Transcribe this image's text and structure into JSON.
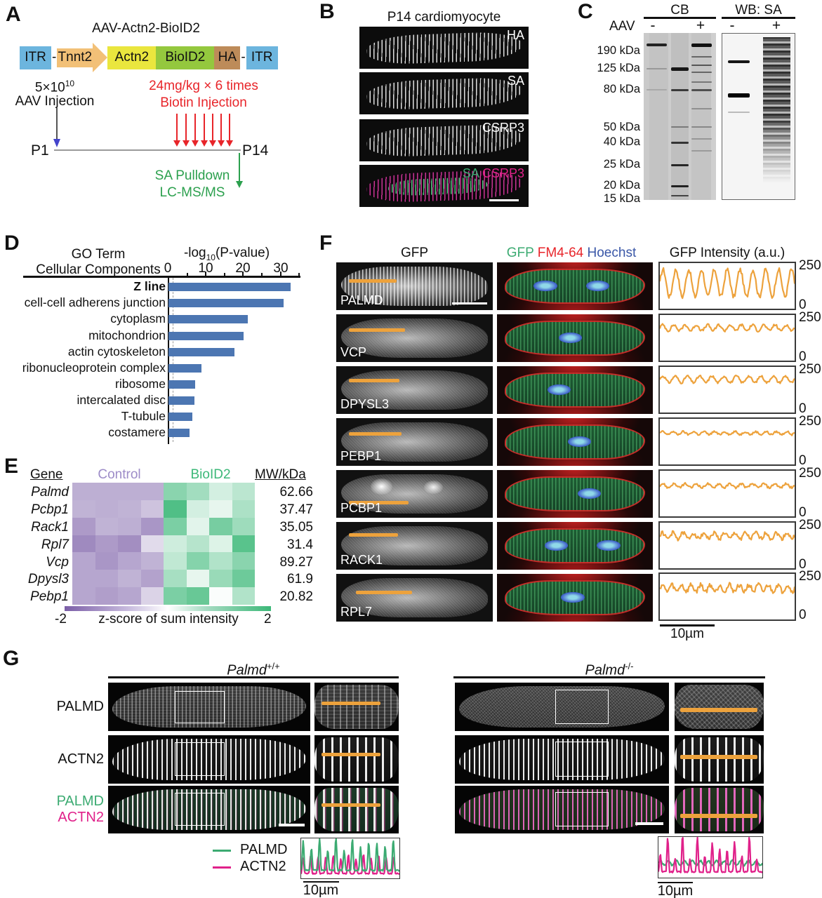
{
  "colors": {
    "red_text": "#e8252a",
    "green_text": "#2ca04e",
    "blue_arrow": "#4444cc",
    "gfp_green": "#3cab72",
    "hoechst_blue": "#3a57a7",
    "magenta": "#e0218a",
    "bar_blue": "#4c76b2",
    "trace_orange": "#eda23c",
    "control_purple": "#9d8cc8",
    "bioid2_green": "#3cb878",
    "itr_blue": "#6cb5de",
    "tnnt2_orange": "#f2c077",
    "actn2_yellow": "#eae63e",
    "bioid2_box_green": "#94c83e",
    "ha_brown": "#bd8b59",
    "heat_purple": "#7b5ea7",
    "heat_green": "#3cb878",
    "timeline_gray": "#9a9a9a"
  },
  "panelA": {
    "letter": "A",
    "title": "AAV-Actn2-BioID2",
    "construct": {
      "itr_left": "ITR",
      "dash1": "-",
      "promoter": "Tnnt2",
      "gene": "Actn2",
      "tag": "BioID2",
      "ha": "HA",
      "dash2": "-",
      "itr_right": "ITR"
    },
    "dose_base": "5×10",
    "dose_exp": "10",
    "aav_label": "AAV Injection",
    "biotin_dose": "24mg/kg × 6 times",
    "biotin_label": "Biotin Injection",
    "timeline_start": "P1",
    "timeline_end": "P14",
    "pulldown": "SA Pulldown",
    "ms": "LC-MS/MS"
  },
  "panelB": {
    "letter": "B",
    "title": "P14 cardiomyocyte",
    "images": [
      {
        "label": "HA"
      },
      {
        "label": "SA"
      },
      {
        "label": "CSRP3"
      },
      {
        "label_green": "SA",
        "label_magenta": "CSRP3"
      }
    ]
  },
  "panelC": {
    "letter": "C",
    "blot1_title": "CB",
    "blot2_title": "WB: SA",
    "row_label": "AAV",
    "lane_signs": [
      "-",
      "+",
      "-",
      "+"
    ],
    "mw_labels": [
      "190 kDa",
      "125 kDa",
      "80 kDa",
      "50 kDa",
      "40 kDa",
      "25 kDa",
      "20 kDa",
      "15 kDa"
    ]
  },
  "panelD": {
    "letter": "D",
    "header_line1": "GO Term",
    "header_line2": "Cellular Components",
    "axis_pre": "-log",
    "axis_sub": "10",
    "axis_post": "(P-value)",
    "ticks": [
      "0",
      "10",
      "20",
      "30"
    ]
  },
  "panelE": {
    "letter": "E",
    "headers": {
      "gene": "Gene",
      "control": "Control",
      "bioid2": "BioID2",
      "mw": "MW/kDa"
    },
    "rows": [
      {
        "gene": "Palmd",
        "mw": "62.66"
      },
      {
        "gene": "Pcbp1",
        "mw": "37.47"
      },
      {
        "gene": "Rack1",
        "mw": "35.05"
      },
      {
        "gene": "Rpl7",
        "mw": "31.4"
      },
      {
        "gene": "Vcp",
        "mw": "89.27"
      },
      {
        "gene": "Dpysl3",
        "mw": "61.9"
      },
      {
        "gene": "Pebp1",
        "mw": "20.82"
      }
    ],
    "heatmap": {
      "columns": [
        "Control",
        "Control",
        "Control",
        "Control",
        "BioID2",
        "BioID2",
        "BioID2",
        "BioID2"
      ],
      "z": [
        [
          -1.0,
          -1.0,
          -1.0,
          -1.0,
          1.2,
          0.95,
          0.45,
          0.7
        ],
        [
          -0.95,
          -1.0,
          -0.95,
          -0.75,
          1.8,
          0.45,
          0.25,
          0.85
        ],
        [
          -1.25,
          -0.95,
          -1.0,
          -1.3,
          1.35,
          0.3,
          1.4,
          1.0
        ],
        [
          -1.45,
          -1.25,
          -1.4,
          -0.45,
          0.5,
          0.75,
          0.35,
          1.7
        ],
        [
          -1.1,
          -1.3,
          -1.1,
          -0.95,
          0.65,
          1.25,
          0.8,
          1.2
        ],
        [
          -1.1,
          -1.1,
          -0.95,
          -1.15,
          0.9,
          0.25,
          1.05,
          1.5
        ],
        [
          -1.1,
          -1.2,
          -1.1,
          -0.55,
          1.35,
          1.55,
          0.05,
          0.8
        ]
      ]
    },
    "colorbar": {
      "min": "-2",
      "max": "2",
      "label": "z-score of sum intensity"
    }
  },
  "panelF": {
    "letter": "F",
    "col1_header": "GFP",
    "col2_header": {
      "gfp": "GFP",
      "fm": "FM4-64",
      "hoechst": "Hoechst"
    },
    "col3_header": "GFP Intensity (a.u.)",
    "ymax": "250",
    "ymin": "0",
    "scale_label": "10µm"
  },
  "panelG": {
    "letter": "G",
    "wt_title": {
      "base": "Palmd",
      "sup": "+/+"
    },
    "ko_title": {
      "base": "Palmd",
      "sup": "-/-"
    },
    "row_labels": [
      "PALMD",
      "ACTN2"
    ],
    "merge_labels": {
      "green": "PALMD",
      "magenta": "ACTN2"
    },
    "legend": [
      {
        "label": "PALMD"
      },
      {
        "label": "ACTN2"
      }
    ],
    "scale_label_wt": "10µm",
    "scale_label_ko": "10µm"
  },
  "chart_data": [
    {
      "id": "go-terms",
      "type": "bar",
      "orientation": "horizontal",
      "title": "GO Term Cellular Components",
      "xlabel": "-log10(P-value)",
      "xlim": [
        0,
        35
      ],
      "xticks": [
        0,
        10,
        20,
        30
      ],
      "grid": false,
      "categories": [
        "Z line",
        "cell-cell adherens junction",
        "cytoplasm",
        "mitochondrion",
        "actin cytoskeleton",
        "ribonucleoprotein complex",
        "ribosome",
        "intercalated disc",
        "T-tubule",
        "costamere"
      ],
      "values": [
        32.5,
        30.6,
        21.1,
        20.0,
        17.6,
        8.8,
        7.1,
        6.9,
        6.4,
        5.6
      ],
      "bar_color": "#4c76b2",
      "threshold_dashed_x": 1.3
    },
    {
      "id": "gfp-intensity-traces",
      "type": "line",
      "ylabel": "GFP Intensity (a.u.)",
      "ylim": [
        0,
        250
      ],
      "x_scale_label": "10µm",
      "series": [
        {
          "name": "PALMD",
          "baseline": 140,
          "amplitude": 75,
          "peaks": 10.5,
          "sharpness": 1,
          "noise": 25,
          "seed": 2
        },
        {
          "name": "VCP",
          "baseline": 180,
          "amplitude": 16,
          "peaks": 12,
          "sharpness": 1,
          "noise": 14,
          "seed": 3
        },
        {
          "name": "DPYSL3",
          "baseline": 182,
          "amplitude": 18,
          "peaks": 11,
          "sharpness": 1,
          "noise": 12,
          "seed": 4
        },
        {
          "name": "PEBP1",
          "baseline": 172,
          "amplitude": 8,
          "peaks": 13,
          "sharpness": 1,
          "noise": 10,
          "seed": 5
        },
        {
          "name": "PCBP1",
          "baseline": 168,
          "amplitude": 11,
          "peaks": 12,
          "sharpness": 1,
          "noise": 12,
          "seed": 6
        },
        {
          "name": "RACK1",
          "baseline": 178,
          "amplitude": 16,
          "peaks": 13,
          "sharpness": 1,
          "noise": 22,
          "seed": 7
        },
        {
          "name": "RPL7",
          "baseline": 172,
          "amplitude": 18,
          "peaks": 14,
          "sharpness": 1,
          "noise": 26,
          "seed": 8
        }
      ]
    },
    {
      "id": "palmd-wt-linescan",
      "type": "line",
      "ylim": [
        0,
        250
      ],
      "x_scale_label": "10µm",
      "series": [
        {
          "name": "ACTN2",
          "color_key": "magenta",
          "baseline": 30,
          "amplitude": 105,
          "peaks": 13,
          "sharpness": 2,
          "amp_jitter": 0.15,
          "noise": 6,
          "seed": 10
        },
        {
          "name": "PALMD",
          "color_key": "gfp_green",
          "baseline": 50,
          "amplitude": 165,
          "peaks": 12,
          "sharpness": 2.5,
          "amp_jitter": 0.25,
          "noise": 8,
          "seed": 9
        }
      ]
    },
    {
      "id": "palmd-ko-linescan",
      "type": "line",
      "ylim": [
        0,
        250
      ],
      "x_scale_label": "10µm",
      "series": [
        {
          "name": "PALMD",
          "color_key": "gfp_green",
          "baseline": 90,
          "amplitude": 14,
          "peaks": 13,
          "sharpness": 1,
          "amp_jitter": 0,
          "noise": 10,
          "seed": 13
        },
        {
          "name": "ACTN2",
          "color_key": "magenta",
          "baseline": 35,
          "amplitude": 150,
          "peaks": 14,
          "sharpness": 2,
          "amp_jitter": 0.5,
          "noise": 8,
          "seed": 12
        }
      ]
    }
  ]
}
